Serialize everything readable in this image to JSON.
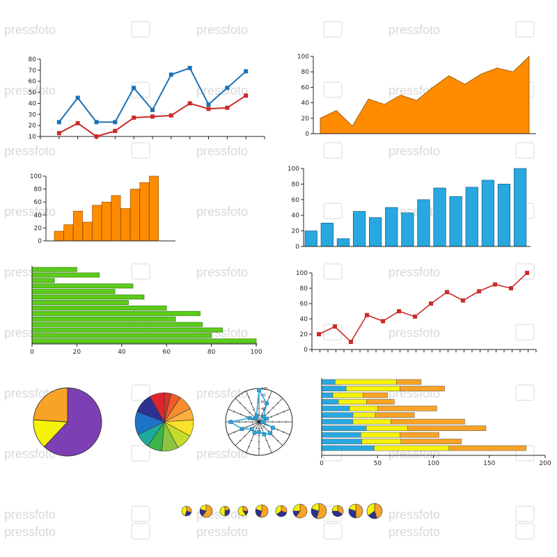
{
  "watermark": {
    "text": "pressfoto"
  },
  "colors": {
    "blue": "#1a72b8",
    "red": "#cc2a2a",
    "orange": "#ff8c00",
    "sky": "#29a8e0",
    "green": "#5ccc1a",
    "purple": "#7e3fb5",
    "yellow": "#f5f20a",
    "navy": "#2a3190"
  },
  "chart_data": [
    {
      "id": "line-two-series",
      "type": "line",
      "x": [
        1,
        2,
        3,
        4,
        5,
        6,
        7,
        8,
        9,
        10,
        11,
        12
      ],
      "series": [
        {
          "values": [
            23,
            45,
            23,
            23,
            54,
            34,
            66,
            72,
            39,
            54,
            69,
            null
          ],
          "color": "#1a72b8"
        },
        {
          "values": [
            13,
            22,
            10,
            15,
            27,
            28,
            29,
            40,
            35,
            36,
            47,
            null
          ],
          "color": "#cc2a2a"
        }
      ],
      "xlim": [
        0,
        12
      ],
      "ylim": [
        10,
        80
      ],
      "yticks": [
        10,
        20,
        30,
        40,
        50,
        60,
        70,
        80
      ],
      "ytick_labels": [
        "10",
        "20",
        "30",
        "40",
        "50",
        "60",
        "70",
        "80"
      ]
    },
    {
      "id": "area-orange",
      "type": "area",
      "values": [
        20,
        30,
        10,
        45,
        38,
        50,
        43,
        60,
        75,
        64,
        77,
        85,
        80,
        100
      ],
      "color": "#ff8c00",
      "ylim": [
        0,
        100
      ],
      "yticks": [
        0,
        20,
        40,
        60,
        80,
        100
      ],
      "ytick_labels": [
        "0",
        "20",
        "40",
        "60",
        "80",
        "100"
      ]
    },
    {
      "id": "bar-orange",
      "type": "bar",
      "values": [
        15,
        25,
        46,
        29,
        55,
        60,
        70,
        50,
        80,
        90,
        100
      ],
      "color": "#ff8c00",
      "ylim": [
        0,
        100
      ],
      "yticks": [
        0,
        20,
        40,
        60,
        80,
        100
      ],
      "ytick_labels": [
        "0",
        "20",
        "40",
        "60",
        "80",
        "100"
      ]
    },
    {
      "id": "bar-blue",
      "type": "bar",
      "values": [
        20,
        30,
        10,
        45,
        37,
        50,
        43,
        60,
        75,
        64,
        76,
        85,
        80,
        100
      ],
      "color": "#29a8e0",
      "ylim": [
        0,
        100
      ],
      "yticks": [
        0,
        20,
        40,
        60,
        80,
        100
      ],
      "ytick_labels": [
        "0",
        "20",
        "40",
        "60",
        "80",
        "100"
      ]
    },
    {
      "id": "hbar-green",
      "type": "bar",
      "orientation": "horizontal",
      "values": [
        20,
        30,
        10,
        45,
        37,
        50,
        43,
        60,
        75,
        64,
        76,
        85,
        80,
        100
      ],
      "color": "#5ccc1a",
      "xlim": [
        0,
        100
      ],
      "xticks": [
        0,
        20,
        40,
        60,
        80,
        100
      ],
      "xtick_labels": [
        "0",
        "20",
        "40",
        "60",
        "80",
        "100"
      ]
    },
    {
      "id": "line-red",
      "type": "line",
      "values": [
        20,
        30,
        10,
        45,
        37,
        50,
        43,
        60,
        75,
        64,
        76,
        85,
        80,
        100
      ],
      "color": "#cc2a2a",
      "ylim": [
        0,
        100
      ],
      "yticks": [
        0,
        20,
        40,
        60,
        80,
        100
      ],
      "ytick_labels": [
        "0",
        "20",
        "40",
        "60",
        "80",
        "100"
      ]
    },
    {
      "id": "pie-three",
      "type": "pie",
      "slices": [
        {
          "value": 62,
          "color": "#7e3fb5"
        },
        {
          "value": 14,
          "color": "#f5f20a"
        },
        {
          "value": 24,
          "color": "#f9a326"
        }
      ]
    },
    {
      "id": "pie-rainbow",
      "type": "pie",
      "slices": [
        {
          "value": 4,
          "color": "#d9342b"
        },
        {
          "value": 6,
          "color": "#ef5b2a"
        },
        {
          "value": 9,
          "color": "#f58e2f"
        },
        {
          "value": 7,
          "color": "#fbb03b"
        },
        {
          "value": 10,
          "color": "#f7e12a"
        },
        {
          "value": 10,
          "color": "#c6dc2c"
        },
        {
          "value": 10,
          "color": "#8cc63f"
        },
        {
          "value": 9,
          "color": "#3bb44a"
        },
        {
          "value": 9,
          "color": "#1fa99b"
        },
        {
          "value": 14,
          "color": "#1e72c8"
        },
        {
          "value": 12,
          "color": "#2e3192"
        },
        {
          "value": 9,
          "color": "#e0242e"
        }
      ]
    },
    {
      "id": "radar",
      "type": "line",
      "subtype": "polar",
      "values": [
        95,
        60,
        20,
        25,
        10,
        45,
        48,
        40,
        30,
        35,
        30,
        55,
        85,
        30,
        15,
        20
      ],
      "color": "#29a8e0",
      "rlim": [
        0,
        100
      ],
      "rticks": [
        20,
        40,
        60,
        80,
        100
      ],
      "rtick_labels": [
        "20",
        "40",
        "60",
        "80",
        "100"
      ]
    },
    {
      "id": "stacked-hbar",
      "type": "bar",
      "orientation": "horizontal",
      "stacked": true,
      "series": [
        {
          "color": "#29a8e0",
          "values": [
            12,
            22,
            10,
            15,
            25,
            28,
            28,
            40,
            35,
            36,
            47
          ]
        },
        {
          "color": "#f5f20a",
          "values": [
            55,
            48,
            27,
            25,
            25,
            20,
            34,
            37,
            35,
            35,
            67
          ]
        },
        {
          "color": "#f9a326",
          "values": [
            22,
            40,
            22,
            25,
            53,
            35,
            66,
            70,
            35,
            54,
            69
          ]
        }
      ],
      "xlim": [
        0,
        200
      ],
      "xticks": [
        0,
        50,
        100,
        150,
        200
      ],
      "xtick_labels": [
        "0",
        "50",
        "100",
        "150",
        "200"
      ]
    },
    {
      "id": "mini-pies",
      "type": "pie",
      "subtype": "small-multiples",
      "colors": [
        "#f9a326",
        "#2e3192",
        "#f5f20a"
      ],
      "pies": [
        [
          30,
          25,
          45
        ],
        [
          60,
          20,
          20
        ],
        [
          20,
          30,
          50
        ],
        [
          25,
          15,
          60
        ],
        [
          55,
          25,
          20
        ],
        [
          30,
          35,
          35
        ],
        [
          60,
          15,
          25
        ],
        [
          55,
          25,
          20
        ],
        [
          35,
          40,
          25
        ],
        [
          50,
          30,
          20
        ],
        [
          45,
          20,
          35
        ]
      ]
    }
  ]
}
